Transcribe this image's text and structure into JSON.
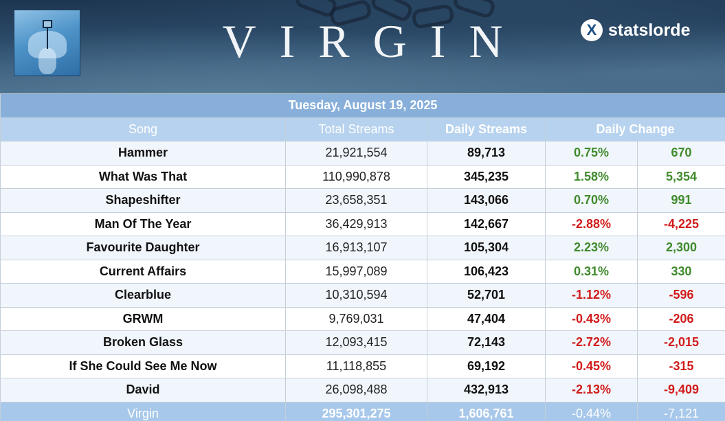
{
  "header": {
    "album_title": "VIRGIN",
    "brand": {
      "logo_letter": "X",
      "name": "statslorde"
    }
  },
  "table": {
    "date": "Tuesday, August 19, 2025",
    "columns": [
      "Song",
      "Total Streams",
      "Daily Streams",
      "Daily Change"
    ],
    "rows": [
      {
        "song": "Hammer",
        "total": "21,921,554",
        "daily": "89,713",
        "pct": "0.75%",
        "delta": "670",
        "trend": "up"
      },
      {
        "song": "What Was That",
        "total": "110,990,878",
        "daily": "345,235",
        "pct": "1.58%",
        "delta": "5,354",
        "trend": "up"
      },
      {
        "song": "Shapeshifter",
        "total": "23,658,351",
        "daily": "143,066",
        "pct": "0.70%",
        "delta": "991",
        "trend": "up"
      },
      {
        "song": "Man Of The Year",
        "total": "36,429,913",
        "daily": "142,667",
        "pct": "-2.88%",
        "delta": "-4,225",
        "trend": "down"
      },
      {
        "song": "Favourite Daughter",
        "total": "16,913,107",
        "daily": "105,304",
        "pct": "2.23%",
        "delta": "2,300",
        "trend": "up"
      },
      {
        "song": "Current Affairs",
        "total": "15,997,089",
        "daily": "106,423",
        "pct": "0.31%",
        "delta": "330",
        "trend": "up"
      },
      {
        "song": "Clearblue",
        "total": "10,310,594",
        "daily": "52,701",
        "pct": "-1.12%",
        "delta": "-596",
        "trend": "down"
      },
      {
        "song": "GRWM",
        "total": "9,769,031",
        "daily": "47,404",
        "pct": "-0.43%",
        "delta": "-206",
        "trend": "down"
      },
      {
        "song": "Broken Glass",
        "total": "12,093,415",
        "daily": "72,143",
        "pct": "-2.72%",
        "delta": "-2,015",
        "trend": "down"
      },
      {
        "song": "If She Could See Me Now",
        "total": "11,118,855",
        "daily": "69,192",
        "pct": "-0.45%",
        "delta": "-315",
        "trend": "down"
      },
      {
        "song": "David",
        "total": "26,098,488",
        "daily": "432,913",
        "pct": "-2.13%",
        "delta": "-9,409",
        "trend": "down"
      }
    ],
    "footer": {
      "song": "Virgin",
      "total": "295,301,275",
      "daily": "1,606,761",
      "pct": "-0.44%",
      "delta": "-7,121"
    }
  },
  "colors": {
    "positive": "#3f8a2c",
    "negative": "#d11b1b",
    "date_bar": "#87afd9",
    "header_bar": "#b6d2ee",
    "footer_bar": "#a7c8ea"
  }
}
